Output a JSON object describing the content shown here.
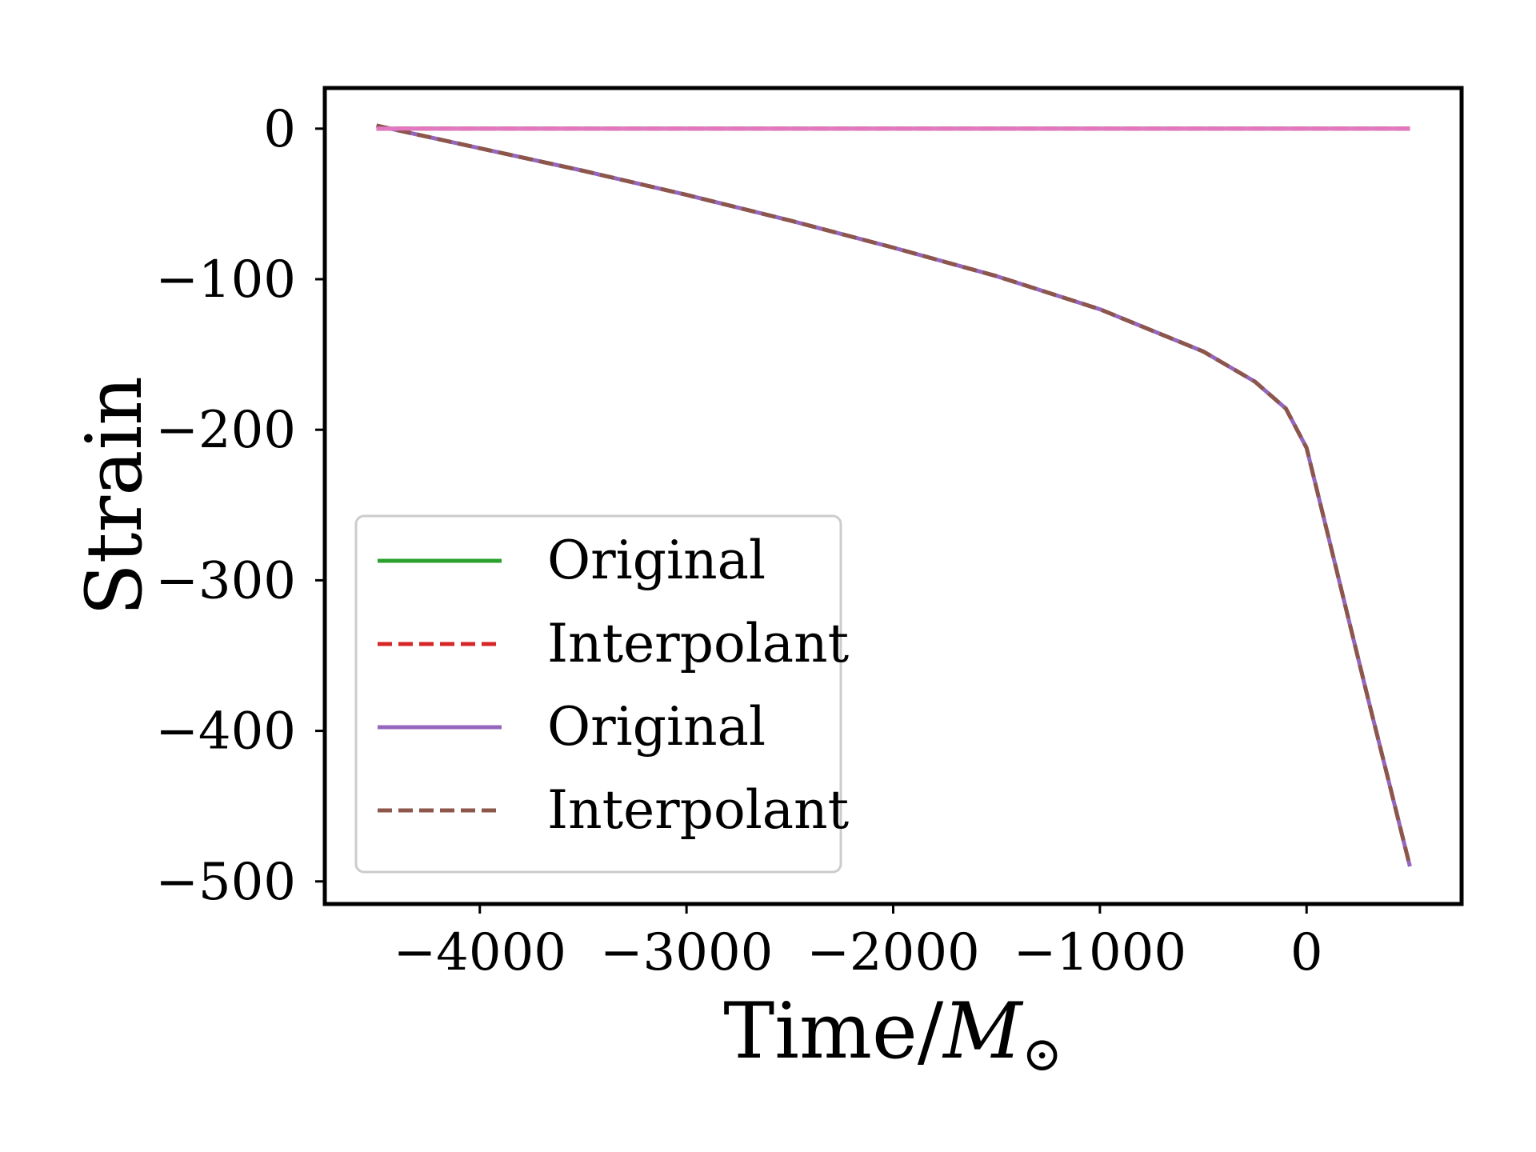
{
  "chart_data": {
    "type": "line",
    "xlabel": "Time/M⊙",
    "ylabel": "Strain",
    "xlim": [
      -4750,
      750
    ],
    "ylim": [
      -515,
      27
    ],
    "xticks": [
      -4000,
      -3000,
      -2000,
      -1000,
      0
    ],
    "xtick_labels": [
      "−4000",
      "−3000",
      "−2000",
      "−1000",
      "0"
    ],
    "yticks": [
      0,
      -100,
      -200,
      -300,
      -400,
      -500
    ],
    "ytick_labels": [
      "0",
      "−100",
      "−200",
      "−300",
      "−400",
      "−500"
    ],
    "grid": false,
    "legend_position": "lower-left",
    "series": [
      {
        "name": "Original",
        "color": "#2ca02c",
        "dash": "solid",
        "x": [
          -4500,
          -4000,
          -3000,
          -2000,
          -1000,
          0,
          500
        ],
        "y": [
          0,
          0,
          0,
          0,
          0,
          0,
          0
        ]
      },
      {
        "name": "Interpolant",
        "color": "#d62728",
        "dash": "dashed",
        "x": [
          -4500,
          -4000,
          -3000,
          -2000,
          -1000,
          0,
          500
        ],
        "y": [
          0,
          0,
          0,
          0,
          0,
          0,
          0
        ]
      },
      {
        "name": "Original",
        "color": "#9467bd",
        "dash": "solid",
        "x": [
          -4500,
          -4000,
          -3500,
          -3000,
          -2500,
          -2000,
          -1500,
          -1000,
          -500,
          -250,
          -100,
          0,
          100,
          200,
          300,
          400,
          500
        ],
        "y": [
          2,
          -13,
          -28,
          -44,
          -61,
          -79,
          -98,
          -120,
          -148,
          -168,
          -186,
          -212,
          -268,
          -324,
          -380,
          -435,
          -490
        ]
      },
      {
        "name": "Interpolant",
        "color": "#8c564b",
        "dash": "dashed",
        "x": [
          -4500,
          -4000,
          -3500,
          -3000,
          -2500,
          -2000,
          -1500,
          -1000,
          -500,
          -250,
          -100,
          0,
          100,
          200,
          300,
          400,
          500
        ],
        "y": [
          2,
          -13,
          -28,
          -44,
          -61,
          -79,
          -98,
          -120,
          -148,
          -168,
          -186,
          -212,
          -268,
          -324,
          -380,
          -435,
          -490
        ]
      },
      {
        "name": "",
        "color": "#e377c2",
        "dash": "solid",
        "x": [
          -4500,
          -4000,
          -3000,
          -2000,
          -1000,
          0,
          500
        ],
        "y": [
          0,
          0,
          0,
          0,
          0,
          0,
          0
        ]
      }
    ]
  }
}
